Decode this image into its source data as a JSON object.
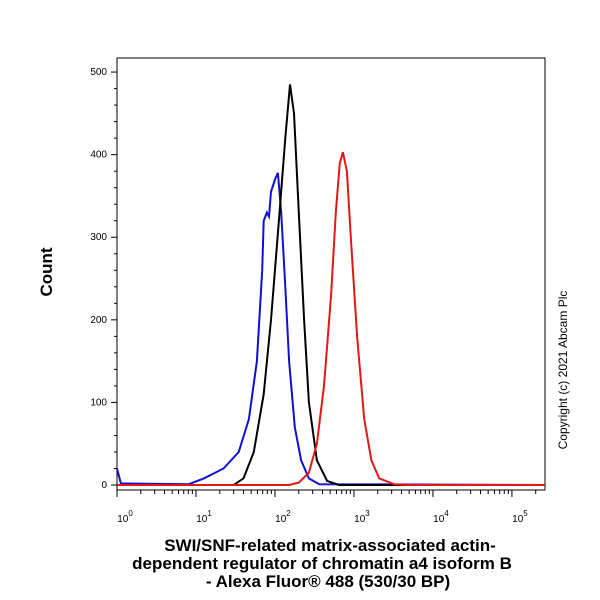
{
  "chart_data": {
    "type": "line",
    "x_label": [
      "SWI/SNF-related matrix-associated actin-",
      "dependent regulator of chromatin a4 isoform B",
      "- Alexa Fluor® 488 (530/30 BP)"
    ],
    "y_label": "Count",
    "annotation": "Copyright (c) 2021 Abcam Plc",
    "log_x": true,
    "xlim": [
      1,
      262144
    ],
    "ylim": [
      -6,
      517
    ],
    "xticks": [
      {
        "value": 1,
        "label": "10",
        "exponent": "0"
      },
      {
        "value": 10,
        "label": "10",
        "exponent": "1"
      },
      {
        "value": 100,
        "label": "10",
        "exponent": "2"
      },
      {
        "value": 1000,
        "label": "10",
        "exponent": "3"
      },
      {
        "value": 10000,
        "label": "10",
        "exponent": "4"
      },
      {
        "value": 100000,
        "label": "10",
        "exponent": "5"
      }
    ],
    "yticks": [
      0,
      100,
      200,
      300,
      400,
      500
    ],
    "series": [
      {
        "color": "#1010d0",
        "x": [
          1,
          1.12,
          8.1,
          12.6,
          22.3,
          34.7,
          46.8,
          59,
          69,
          72,
          79,
          84,
          89,
          100,
          109,
          120,
          135,
          151,
          178,
          214,
          269,
          363,
          262144
        ],
        "values": [
          20,
          2,
          1,
          8,
          20,
          40,
          80,
          150,
          260,
          320,
          330,
          325,
          355,
          370,
          378,
          330,
          240,
          150,
          70,
          30,
          8,
          1,
          0
        ]
      },
      {
        "color": "#000000",
        "x": [
          1,
          30,
          40,
          54,
          72,
          89,
          112,
          135,
          155,
          174,
          200,
          234,
          269,
          339,
          457,
          646,
          262144
        ],
        "values": [
          0,
          0,
          8,
          40,
          110,
          200,
          320,
          420,
          485,
          450,
          330,
          200,
          100,
          30,
          5,
          0,
          0
        ]
      },
      {
        "color": "#e01818",
        "x": [
          1,
          151,
          200,
          269,
          339,
          417,
          513,
          589,
          661,
          724,
          813,
          912,
          1096,
          1349,
          1660,
          2089,
          3236,
          5012,
          262144
        ],
        "values": [
          0,
          0,
          3,
          15,
          50,
          120,
          230,
          330,
          390,
          403,
          380,
          300,
          180,
          80,
          30,
          8,
          1,
          0,
          0
        ]
      }
    ]
  }
}
